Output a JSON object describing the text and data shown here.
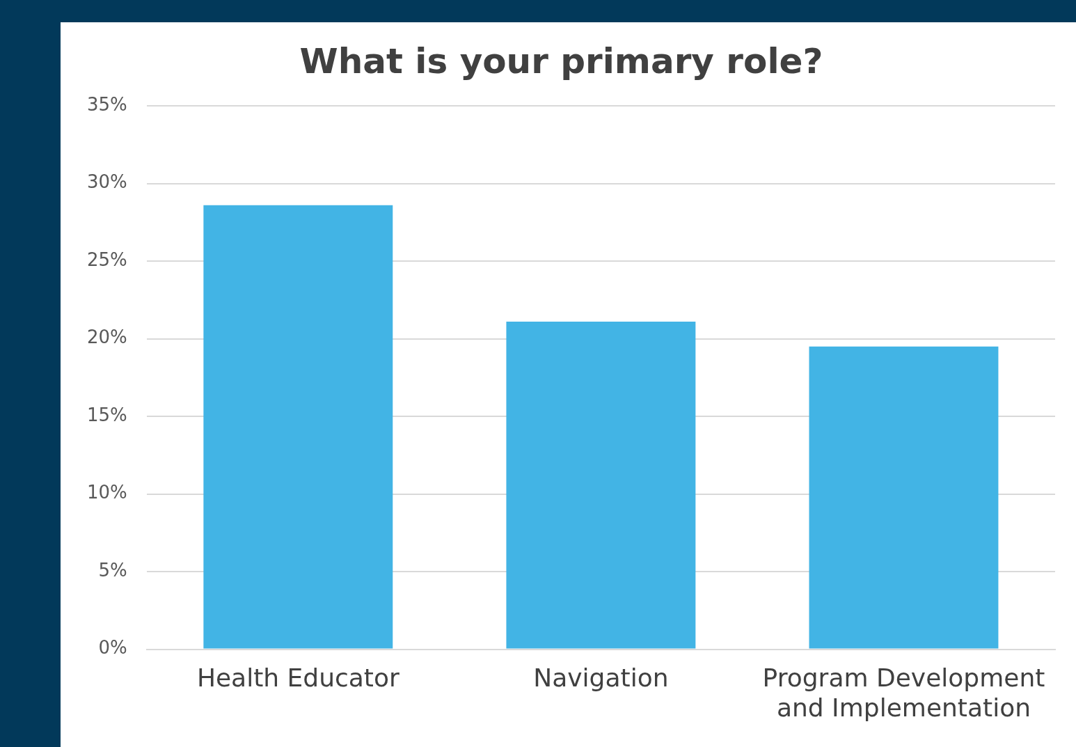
{
  "chart_data": {
    "type": "bar",
    "title": "What is your primary role?",
    "categories": [
      "Health Educator",
      "Navigation",
      "Program Development and Implementation"
    ],
    "values": [
      28.6,
      21.1,
      19.5
    ],
    "color": "#42b4e5",
    "ylim": [
      0,
      35
    ],
    "yticks": [
      {
        "value": 0,
        "label": "0%"
      },
      {
        "value": 5,
        "label": "5%"
      },
      {
        "value": 10,
        "label": "10%"
      },
      {
        "value": 15,
        "label": "15%"
      },
      {
        "value": 20,
        "label": "20%"
      },
      {
        "value": 25,
        "label": "25%"
      },
      {
        "value": 30,
        "label": "30%"
      },
      {
        "value": 35,
        "label": "35%"
      }
    ],
    "grid": "y",
    "legend": false
  }
}
